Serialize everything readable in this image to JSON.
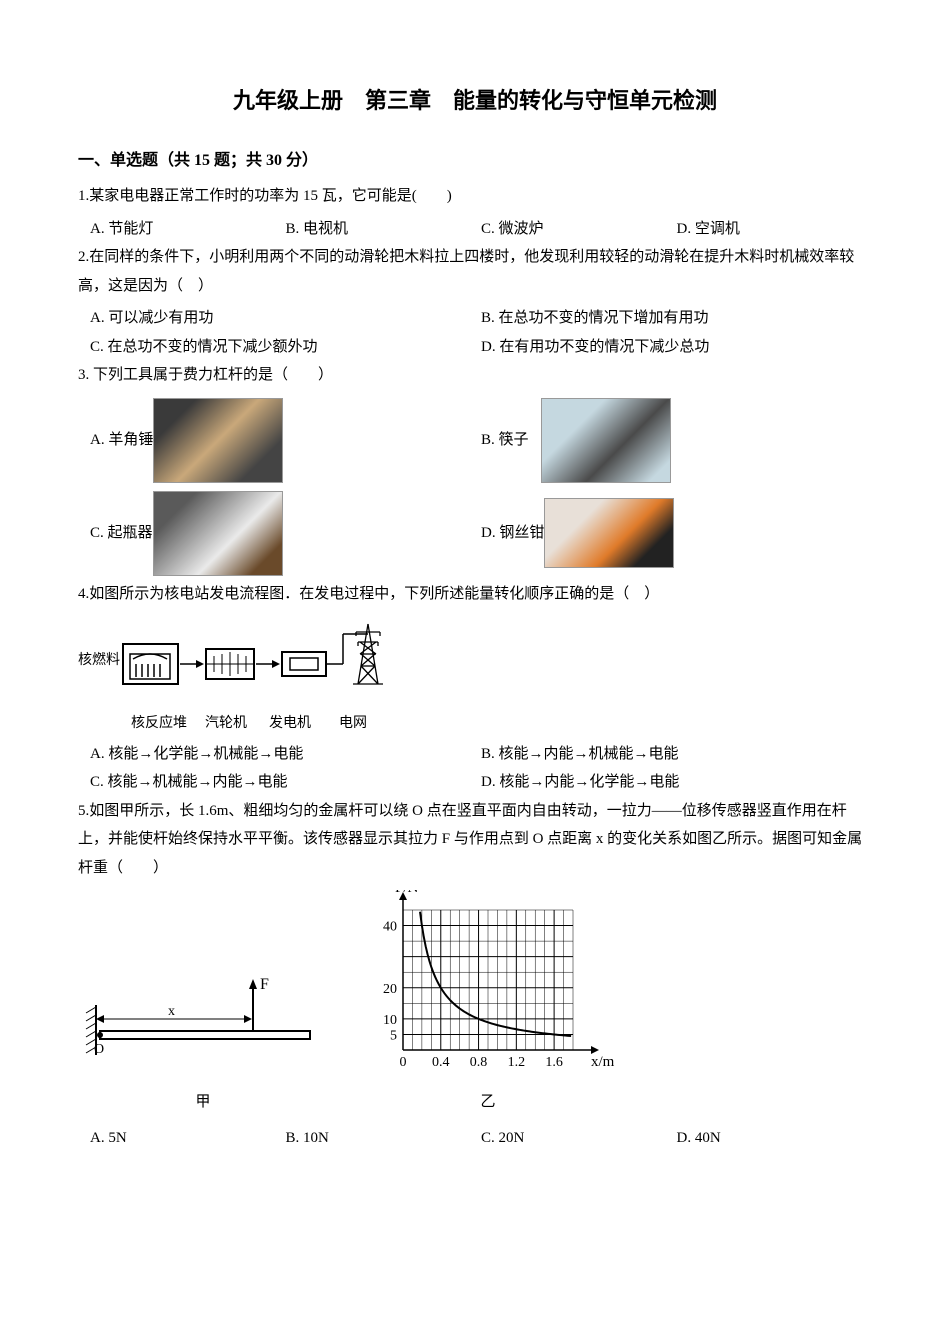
{
  "title": "九年级上册　第三章　能量的转化与守恒单元检测",
  "section1": {
    "header": "一、单选题（共 15 题；共 30 分）"
  },
  "q1": {
    "text": "1.某家电电器正常工作时的功率为 15 瓦，它可能是(　　)",
    "a": "A. 节能灯",
    "b": "B. 电视机",
    "c": "C. 微波炉",
    "d": "D. 空调机"
  },
  "q2": {
    "text": "2.在同样的条件下，小明利用两个不同的动滑轮把木料拉上四楼时，他发现利用较轻的动滑轮在提升木料时机械效率较高，这是因为（　）",
    "a": "A. 可以减少有用功",
    "b": "B. 在总功不变的情况下增加有用功",
    "c": "C. 在总功不变的情况下减少额外功",
    "d": "D. 在有用功不变的情况下减少总功"
  },
  "q3": {
    "text": "3. 下列工具属于费力杠杆的是（　　）",
    "a": "A. 羊角锤",
    "b": "B. 筷子",
    "c": "C. 起瓶器",
    "d": "D. 钢丝钳"
  },
  "q4": {
    "text": "4.如图所示为核电站发电流程图．在发电过程中，下列所述能量转化顺序正确的是（　）",
    "fuel_label": "核燃料",
    "labels": {
      "reactor": "核反应堆",
      "turbine": "汽轮机",
      "generator": "发电机",
      "grid": "电网"
    },
    "a": "A. 核能→化学能→机械能→电能",
    "b": "B. 核能→内能→机械能→电能",
    "c": "C. 核能→机械能→内能→电能",
    "d": "D. 核能→内能→化学能→电能"
  },
  "q5": {
    "text": "5.如图甲所示，长 1.6m、粗细均匀的金属杆可以绕 O 点在竖直平面内自由转动，一拉力——位移传感器竖直作用在杆上，并能使杆始终保持水平平衡。该传感器显示其拉力 F 与作用点到 O 点距离 x 的变化关系如图乙所示。据图可知金属杆重（　　）",
    "fig1_label": "甲",
    "fig2_label": "乙",
    "chart": {
      "y_axis": "F/N",
      "x_axis": "x/m",
      "y_ticks": [
        "5",
        "10",
        "20",
        "40"
      ],
      "x_ticks": [
        "0",
        "0.4",
        "0.8",
        "1.2",
        "1.6"
      ],
      "x_label_on_fig": "x",
      "f_label_on_fig": "F",
      "o_label": "O",
      "curve_points": [
        [
          0.2,
          40
        ],
        [
          0.4,
          20
        ],
        [
          0.8,
          10
        ],
        [
          1.6,
          5
        ]
      ],
      "colors": {
        "grid": "#000000",
        "axis": "#000000",
        "curve": "#000000",
        "bg": "#ffffff"
      }
    },
    "a": "A. 5N",
    "b": "B. 10N",
    "c": "C. 20N",
    "d": "D. 40N"
  }
}
